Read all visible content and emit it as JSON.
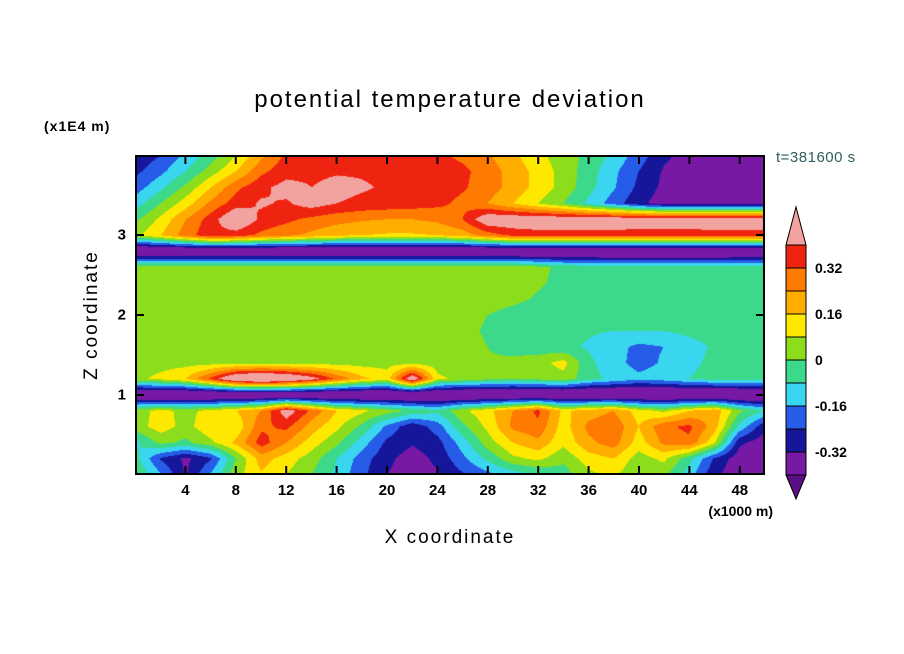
{
  "chart_data": {
    "type": "filled_contour",
    "title": "potential temperature deviation",
    "xlabel": "X coordinate",
    "ylabel": "Z coordinate",
    "x_unit_label": "(x1000 m)",
    "z_unit_label": "(x1E4 m)",
    "time_label": "t=381600 s",
    "x_range": [
      0,
      50
    ],
    "z_range": [
      0,
      4
    ],
    "x_ticks": [
      4,
      8,
      12,
      16,
      20,
      24,
      28,
      32,
      36,
      40,
      44,
      48
    ],
    "z_ticks": [
      1,
      2,
      3
    ],
    "grid": false,
    "legend_position": "right-colorbar",
    "colorbar": {
      "tick_labels": [
        "0.32",
        "0.16",
        "0",
        "-0.16",
        "-0.32"
      ],
      "levels": [
        -0.4,
        -0.32,
        -0.24,
        -0.16,
        -0.08,
        0,
        0.08,
        0.16,
        0.24,
        0.32,
        0.4
      ],
      "band_colors": [
        "#7719A5",
        "#16169A",
        "#275CE8",
        "#3AD6F0",
        "#3CD98A",
        "#8CDE1C",
        "#FFE800",
        "#FFAE00",
        "#FF7A00",
        "#EF2410"
      ],
      "over_color": "#F2A3A0",
      "under_color": "#5C0E86"
    },
    "field": {
      "description": "theta deviation on x-z grid; rows ordered top (z=4.0) to bottom (z=0.0), columns x=0..50 step 2 (x1000 m)",
      "nx": 26,
      "nz": 21,
      "x_start": 0,
      "x_step": 2,
      "z_top": 4.0,
      "z_step": -0.2,
      "values": [
        [
          -0.3,
          -0.24,
          -0.14,
          -0.04,
          0.08,
          0.22,
          0.34,
          0.37,
          0.38,
          0.38,
          0.37,
          0.36,
          0.34,
          0.3,
          0.25,
          0.18,
          0.1,
          0.04,
          -0.02,
          -0.1,
          -0.2,
          -0.3,
          -0.36,
          -0.38,
          -0.38,
          -0.38
        ],
        [
          -0.26,
          -0.18,
          -0.08,
          0.04,
          0.16,
          0.3,
          0.37,
          0.38,
          0.39,
          0.39,
          0.38,
          0.38,
          0.37,
          0.34,
          0.28,
          0.21,
          0.13,
          0.05,
          -0.04,
          -0.14,
          -0.24,
          -0.33,
          -0.37,
          -0.38,
          -0.38,
          -0.38
        ],
        [
          -0.2,
          -0.1,
          0.02,
          0.16,
          0.3,
          0.38,
          0.43,
          0.4,
          0.43,
          0.41,
          0.39,
          0.38,
          0.36,
          0.33,
          0.28,
          0.21,
          0.13,
          0.05,
          -0.05,
          -0.15,
          -0.26,
          -0.34,
          -0.38,
          -0.38,
          -0.38,
          -0.38
        ],
        [
          -0.12,
          0.0,
          0.12,
          0.26,
          0.36,
          0.41,
          0.39,
          0.44,
          0.4,
          0.38,
          0.37,
          0.36,
          0.34,
          0.3,
          0.24,
          0.16,
          0.08,
          0.0,
          -0.1,
          -0.2,
          -0.3,
          -0.36,
          -0.38,
          -0.38,
          -0.38,
          -0.38
        ],
        [
          -0.02,
          0.1,
          0.24,
          0.36,
          0.5,
          0.38,
          0.34,
          0.3,
          0.27,
          0.25,
          0.24,
          0.24,
          0.26,
          0.32,
          0.48,
          0.48,
          0.48,
          0.48,
          0.48,
          0.48,
          0.48,
          0.48,
          0.48,
          0.48,
          0.48,
          0.48
        ],
        [
          0.06,
          0.16,
          0.28,
          0.38,
          0.36,
          0.3,
          0.26,
          0.22,
          0.18,
          0.16,
          0.15,
          0.15,
          0.16,
          0.2,
          0.28,
          0.34,
          0.36,
          0.36,
          0.36,
          0.36,
          0.35,
          0.35,
          0.35,
          0.36,
          0.36,
          0.36
        ],
        [
          -0.5,
          -0.5,
          -0.5,
          -0.5,
          -0.5,
          -0.5,
          -0.5,
          -0.5,
          -0.5,
          -0.5,
          -0.5,
          -0.5,
          -0.5,
          -0.5,
          -0.5,
          -0.5,
          -0.5,
          -0.5,
          -0.5,
          -0.5,
          -0.5,
          -0.5,
          -0.5,
          -0.5,
          -0.5,
          -0.5
        ],
        [
          0.05,
          0.05,
          0.05,
          0.05,
          0.05,
          0.05,
          0.05,
          0.05,
          0.05,
          0.05,
          0.05,
          0.05,
          0.05,
          0.05,
          0.05,
          0.05,
          0.02,
          -0.02,
          -0.04,
          -0.05,
          -0.05,
          -0.05,
          -0.05,
          -0.05,
          -0.04,
          -0.04
        ],
        [
          0.05,
          0.05,
          0.05,
          0.05,
          0.05,
          0.05,
          0.05,
          0.05,
          0.05,
          0.05,
          0.05,
          0.05,
          0.05,
          0.05,
          0.04,
          0.03,
          0.01,
          -0.02,
          -0.05,
          -0.05,
          -0.05,
          -0.05,
          -0.05,
          -0.05,
          -0.05,
          -0.04
        ],
        [
          0.05,
          0.05,
          0.05,
          0.05,
          0.05,
          0.05,
          0.05,
          0.05,
          0.05,
          0.05,
          0.05,
          0.05,
          0.05,
          0.05,
          0.04,
          0.02,
          -0.01,
          -0.04,
          -0.05,
          -0.05,
          -0.05,
          -0.06,
          -0.06,
          -0.05,
          -0.05,
          -0.05
        ],
        [
          0.05,
          0.05,
          0.05,
          0.05,
          0.05,
          0.05,
          0.05,
          0.05,
          0.05,
          0.05,
          0.05,
          0.05,
          0.05,
          0.03,
          0.0,
          -0.03,
          -0.05,
          -0.05,
          -0.05,
          -0.06,
          -0.06,
          -0.06,
          -0.06,
          -0.06,
          -0.05,
          -0.05
        ],
        [
          0.05,
          0.05,
          0.05,
          0.05,
          0.05,
          0.05,
          0.05,
          0.05,
          0.05,
          0.05,
          0.05,
          0.05,
          0.05,
          0.02,
          -0.01,
          -0.04,
          -0.05,
          -0.06,
          -0.07,
          -0.08,
          -0.08,
          -0.08,
          -0.06,
          -0.05,
          -0.05,
          -0.05
        ],
        [
          0.05,
          0.05,
          0.05,
          0.05,
          0.05,
          0.05,
          0.05,
          0.05,
          0.05,
          0.05,
          0.05,
          0.05,
          0.04,
          0.03,
          0.0,
          -0.03,
          -0.05,
          -0.06,
          -0.09,
          -0.13,
          -0.18,
          -0.16,
          -0.11,
          -0.07,
          -0.05,
          -0.05
        ],
        [
          0.05,
          0.05,
          0.05,
          0.05,
          0.05,
          0.05,
          0.05,
          0.05,
          0.05,
          0.05,
          0.05,
          0.05,
          0.04,
          0.03,
          0.01,
          0.02,
          0.05,
          0.11,
          -0.06,
          -0.13,
          -0.19,
          -0.15,
          -0.1,
          -0.06,
          -0.04,
          -0.04
        ],
        [
          0.06,
          0.1,
          0.16,
          0.34,
          0.55,
          0.6,
          0.55,
          0.45,
          0.3,
          0.18,
          0.12,
          0.5,
          0.1,
          0.05,
          0.02,
          0.0,
          0.02,
          0.05,
          -0.05,
          -0.1,
          -0.14,
          -0.12,
          -0.08,
          -0.05,
          -0.04,
          -0.04
        ],
        [
          -0.5,
          -0.5,
          -0.5,
          -0.5,
          -0.5,
          -0.5,
          -0.5,
          -0.5,
          -0.5,
          -0.5,
          -0.5,
          -0.5,
          -0.5,
          -0.5,
          -0.5,
          -0.5,
          -0.5,
          -0.5,
          -0.5,
          -0.5,
          -0.5,
          -0.5,
          -0.5,
          -0.5,
          -0.5,
          -0.5
        ],
        [
          0.05,
          0.1,
          0.06,
          0.1,
          0.16,
          0.24,
          0.46,
          0.3,
          0.16,
          0.1,
          0.04,
          -0.02,
          -0.06,
          0.06,
          0.14,
          0.24,
          0.34,
          0.14,
          0.2,
          0.24,
          0.12,
          0.06,
          0.16,
          0.22,
          0.02,
          -0.08
        ],
        [
          0.04,
          0.12,
          0.05,
          0.14,
          0.1,
          0.3,
          0.34,
          0.2,
          0.1,
          -0.02,
          -0.18,
          -0.3,
          -0.2,
          -0.02,
          0.1,
          0.26,
          0.3,
          0.12,
          0.26,
          0.3,
          0.16,
          0.3,
          0.34,
          0.2,
          -0.1,
          -0.3
        ],
        [
          -0.1,
          0.02,
          -0.02,
          0.06,
          0.18,
          0.36,
          0.24,
          0.12,
          0.02,
          -0.12,
          -0.26,
          -0.31,
          -0.27,
          -0.12,
          0.04,
          0.16,
          0.22,
          0.1,
          0.22,
          0.28,
          0.12,
          0.26,
          0.3,
          0.1,
          -0.3,
          -0.37
        ],
        [
          -0.05,
          -0.25,
          -0.34,
          -0.25,
          0.0,
          0.2,
          0.12,
          0.04,
          -0.08,
          -0.2,
          -0.3,
          -0.36,
          -0.3,
          -0.18,
          -0.06,
          0.06,
          0.1,
          0.02,
          0.12,
          0.16,
          0.04,
          0.1,
          -0.05,
          -0.25,
          -0.37,
          -0.38
        ],
        [
          0.0,
          -0.15,
          -0.33,
          -0.15,
          0.05,
          0.15,
          0.08,
          0.0,
          -0.1,
          -0.22,
          -0.32,
          -0.37,
          -0.33,
          -0.25,
          -0.18,
          -0.12,
          -0.08,
          -0.04,
          0.06,
          0.1,
          0.0,
          0.02,
          -0.12,
          -0.3,
          -0.38,
          -0.38
        ]
      ]
    }
  }
}
